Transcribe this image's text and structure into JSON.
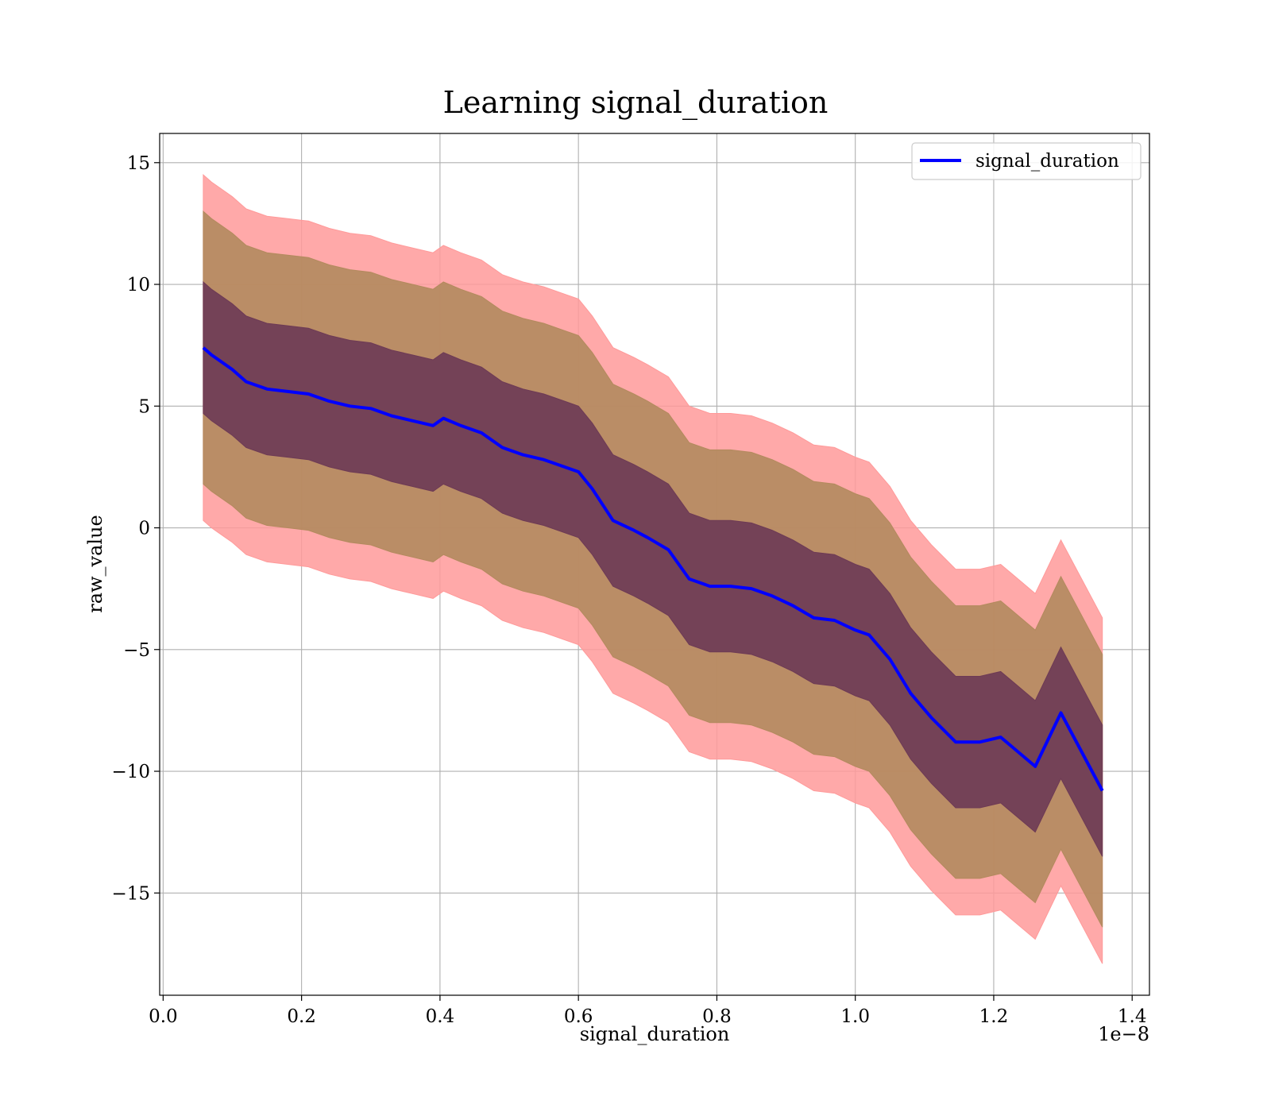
{
  "chart_data": {
    "type": "line",
    "title": "Learning signal_duration",
    "xlabel": "signal_duration",
    "ylabel": "raw_value",
    "x_offset_label": "1e−8",
    "xlim": [
      -0.005,
      1.425
    ],
    "ylim": [
      -19.2,
      16.2
    ],
    "x_ticks": [
      0.0,
      0.2,
      0.4,
      0.6,
      0.8,
      1.0,
      1.2,
      1.4
    ],
    "x_tick_labels": [
      "0.0",
      "0.2",
      "0.4",
      "0.6",
      "0.8",
      "1.0",
      "1.2",
      "1.4"
    ],
    "y_ticks": [
      15,
      10,
      5,
      0,
      -5,
      -10,
      -15
    ],
    "y_tick_labels": [
      "15",
      "10",
      "5",
      "0",
      "−5",
      "−10",
      "−15"
    ],
    "grid": true,
    "legend": {
      "position": "upper-right",
      "entries": [
        "signal_duration"
      ]
    },
    "colors": {
      "line": "#0000ff",
      "band_1sd": "#6d3a55",
      "band_2sd": "#b38a5e",
      "band_3sd": "#ff9a9a"
    },
    "band_half_widths_sd": [
      2.7,
      5.6,
      7.1
    ],
    "series": [
      {
        "name": "signal_duration",
        "x": [
          0.058,
          0.07,
          0.08,
          0.1,
          0.12,
          0.15,
          0.18,
          0.21,
          0.24,
          0.27,
          0.3,
          0.33,
          0.36,
          0.39,
          0.405,
          0.43,
          0.46,
          0.49,
          0.52,
          0.55,
          0.58,
          0.6,
          0.62,
          0.65,
          0.68,
          0.7,
          0.73,
          0.76,
          0.79,
          0.82,
          0.85,
          0.88,
          0.91,
          0.94,
          0.97,
          1.0,
          1.02,
          1.05,
          1.08,
          1.11,
          1.145,
          1.18,
          1.21,
          1.26,
          1.297,
          1.357
        ],
        "y": [
          7.4,
          7.1,
          6.9,
          6.5,
          6.0,
          5.7,
          5.6,
          5.5,
          5.2,
          5.0,
          4.9,
          4.6,
          4.4,
          4.2,
          4.5,
          4.2,
          3.9,
          3.3,
          3.0,
          2.8,
          2.5,
          2.3,
          1.6,
          0.3,
          -0.1,
          -0.4,
          -0.9,
          -2.1,
          -2.4,
          -2.4,
          -2.5,
          -2.8,
          -3.2,
          -3.7,
          -3.8,
          -4.2,
          -4.4,
          -5.4,
          -6.8,
          -7.8,
          -8.8,
          -8.8,
          -8.6,
          -9.8,
          -7.6,
          -10.8
        ]
      }
    ]
  }
}
